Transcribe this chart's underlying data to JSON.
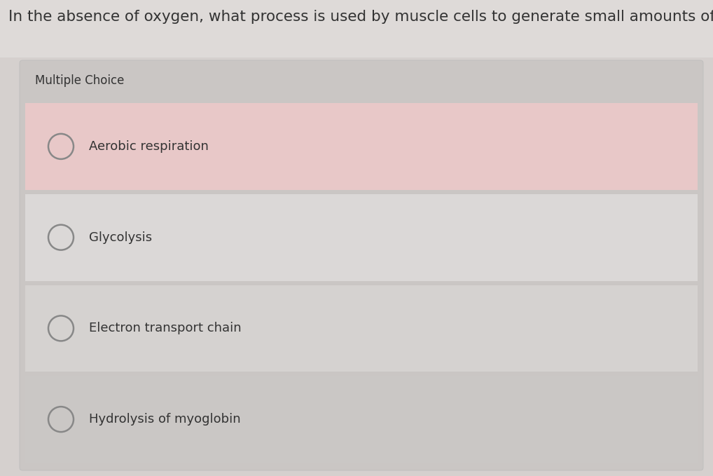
{
  "question": "In the absence of oxygen, what process is used by muscle cells to generate small amounts of ATP?",
  "label": "Multiple Choice",
  "choices": [
    "Aerobic respiration",
    "Glycolysis",
    "Electron transport chain",
    "Hydrolysis of myoglobin"
  ],
  "bg_color": "#d5d0ce",
  "panel_bg": "#cac6c4",
  "choice_colors": [
    "#e8c8c8",
    "#dbd8d7",
    "#d5d2d0",
    "#cac7c5"
  ],
  "separator_color": "#b8b5b3",
  "text_color": "#333333",
  "circle_edge_color": "#888888",
  "question_fontsize": 15.5,
  "label_fontsize": 12,
  "choice_fontsize": 13,
  "fig_width": 10.18,
  "fig_height": 6.79,
  "dpi": 100
}
